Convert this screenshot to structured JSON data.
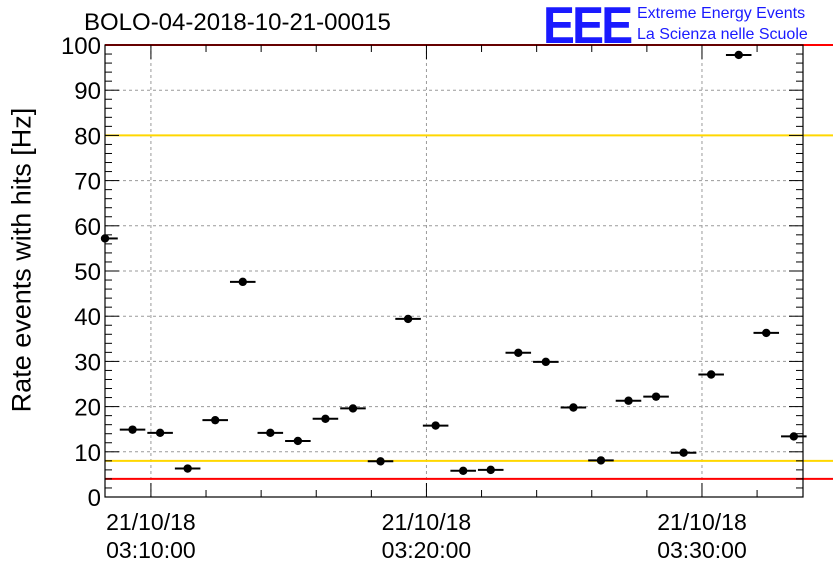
{
  "header": {
    "title": "BOLO-04-2018-10-21-00015",
    "logo_mark": "EEE",
    "logo_line1": "Extreme Energy Events",
    "logo_line2": "La Scienza nelle Scuole"
  },
  "colors": {
    "red_line": "#ff0000",
    "yellow_line": "#ffd700",
    "points": "#000000",
    "logo": "#1a1aff",
    "grid": "#9a9a9a"
  },
  "chart_data": {
    "type": "scatter",
    "title": "BOLO-04-2018-10-21-00015",
    "xlabel": "",
    "ylabel": "Rate events with hits [Hz]",
    "ylim": [
      0,
      100
    ],
    "yticks": [
      0,
      10,
      20,
      30,
      40,
      50,
      60,
      70,
      80,
      90,
      100
    ],
    "xlim": [
      "21/10/18 03:08:20",
      "21/10/18 03:33:40"
    ],
    "xticks": [
      {
        "date": "21/10/18",
        "time": "03:10:00"
      },
      {
        "date": "21/10/18",
        "time": "03:20:00"
      },
      {
        "date": "21/10/18",
        "time": "03:30:00"
      }
    ],
    "grid": true,
    "reference_lines": [
      {
        "y": 100,
        "color": "red"
      },
      {
        "y": 4,
        "color": "red"
      },
      {
        "y": 80,
        "color": "yellow"
      },
      {
        "y": 8,
        "color": "yellow"
      }
    ],
    "points": [
      {
        "x": "03:08:20",
        "y": 57.2
      },
      {
        "x": "03:09:20",
        "y": 14.9
      },
      {
        "x": "03:10:20",
        "y": 14.2
      },
      {
        "x": "03:11:20",
        "y": 6.3
      },
      {
        "x": "03:12:20",
        "y": 17.0
      },
      {
        "x": "03:13:20",
        "y": 47.6
      },
      {
        "x": "03:14:20",
        "y": 14.2
      },
      {
        "x": "03:15:20",
        "y": 12.4
      },
      {
        "x": "03:16:20",
        "y": 17.3
      },
      {
        "x": "03:17:20",
        "y": 19.6
      },
      {
        "x": "03:18:20",
        "y": 7.9
      },
      {
        "x": "03:19:20",
        "y": 39.4
      },
      {
        "x": "03:20:20",
        "y": 15.8
      },
      {
        "x": "03:21:20",
        "y": 5.8
      },
      {
        "x": "03:22:20",
        "y": 6.0
      },
      {
        "x": "03:23:20",
        "y": 31.9
      },
      {
        "x": "03:24:20",
        "y": 29.9
      },
      {
        "x": "03:25:20",
        "y": 19.8
      },
      {
        "x": "03:26:20",
        "y": 8.1
      },
      {
        "x": "03:27:20",
        "y": 21.3
      },
      {
        "x": "03:28:20",
        "y": 22.2
      },
      {
        "x": "03:29:20",
        "y": 9.8
      },
      {
        "x": "03:30:20",
        "y": 27.1
      },
      {
        "x": "03:31:20",
        "y": 97.8
      },
      {
        "x": "03:32:20",
        "y": 36.3
      },
      {
        "x": "03:33:20",
        "y": 13.4
      }
    ]
  }
}
